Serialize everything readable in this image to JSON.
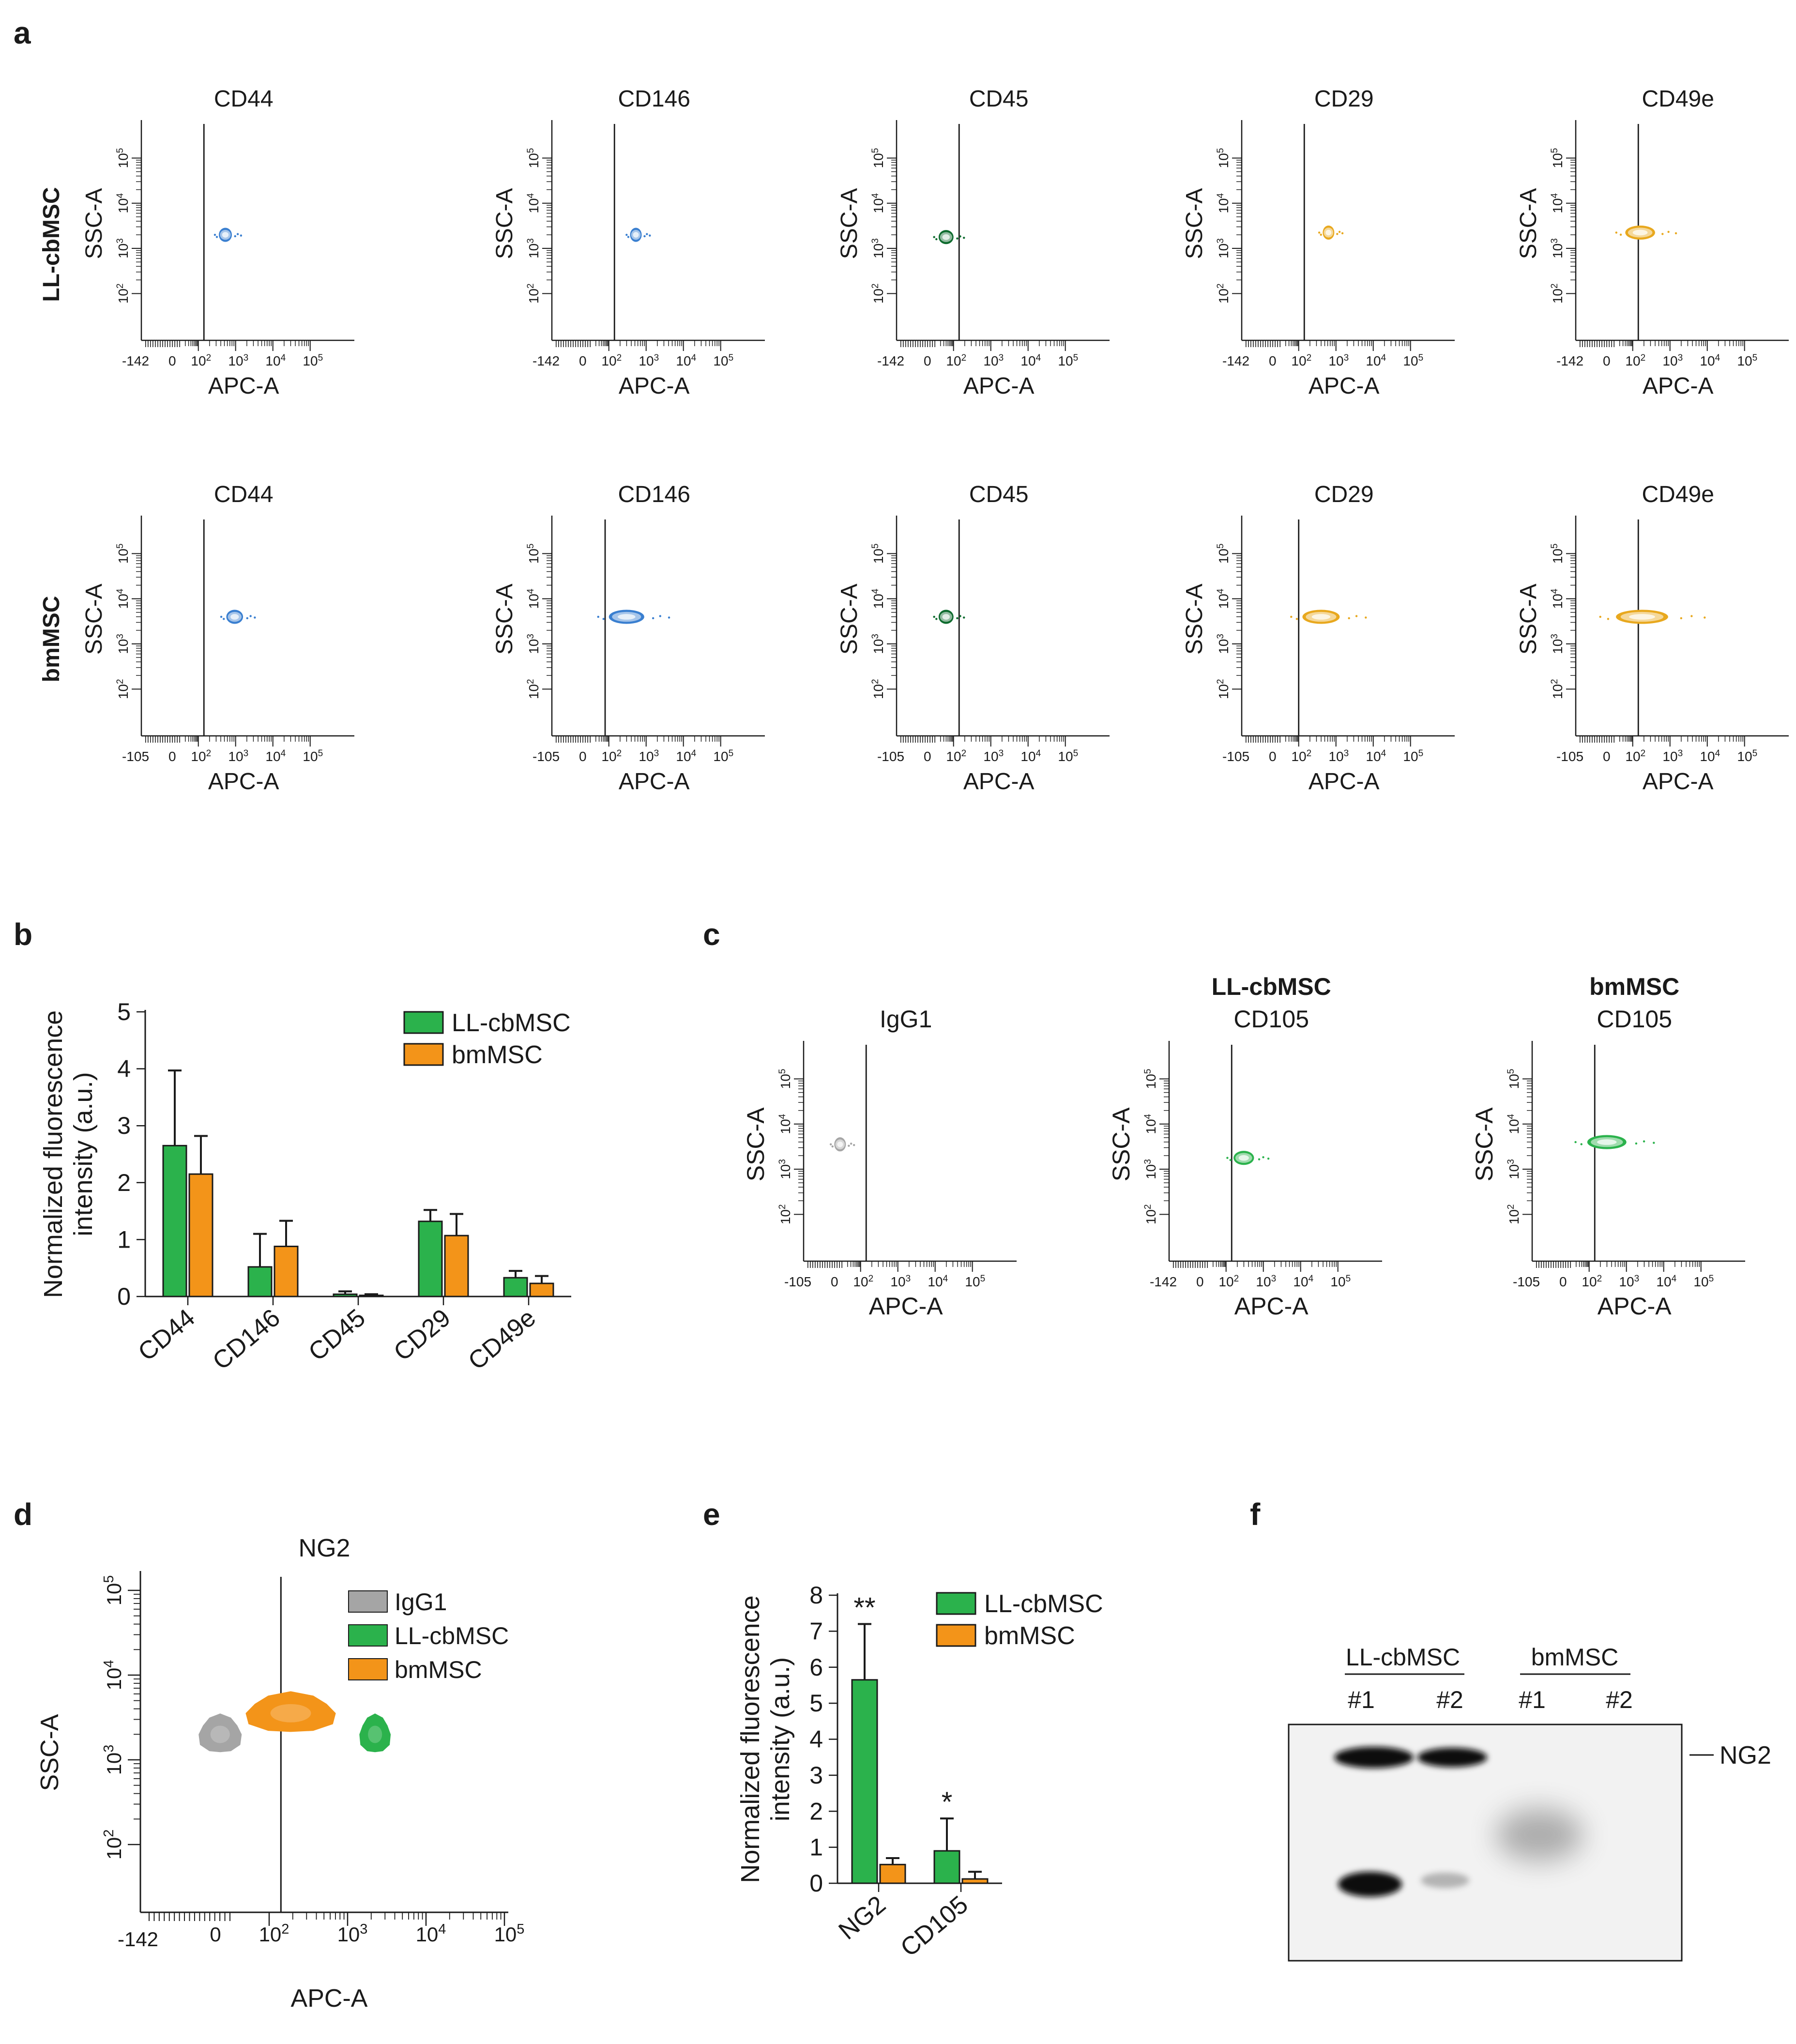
{
  "colors": {
    "blue": "#3a7fd0",
    "dark_green": "#0e6b2e",
    "gold": "#e8a81e",
    "green": "#2bb24c",
    "orange": "#f39419",
    "gray": "#a5a5a5",
    "black": "#1a1a1a"
  },
  "panel_labels": {
    "a": "a",
    "b": "b",
    "c": "c",
    "d": "d",
    "e": "e",
    "f": "f"
  },
  "flow_common": {
    "xlabel": "APC-A",
    "ylabel": "SSC-A",
    "x_tick_labels": [
      "0",
      "10^2",
      "10^3",
      "10^4",
      "10^5"
    ],
    "y_tick_labels": [
      "10^2",
      "10^3",
      "10^4",
      "10^5"
    ]
  },
  "panel_a": {
    "rows": [
      {
        "row_label": "LL-cbMSC",
        "neg_label": "-142",
        "plots": [
          {
            "marker": "CD44",
            "color_key": "blue",
            "gate_log": 2.15,
            "pop": {
              "x": [
                2.55,
                2.9
              ],
              "y": 3.3
            }
          },
          {
            "marker": "CD146",
            "color_key": "blue",
            "gate_log": 2.15,
            "pop": {
              "x": [
                2.6,
                2.85
              ],
              "y": 3.3
            }
          },
          {
            "marker": "CD45",
            "color_key": "dark_green",
            "gate_log": 2.15,
            "pop": {
              "x": [
                1.6,
                2.0
              ],
              "y": 3.25
            }
          },
          {
            "marker": "CD29",
            "color_key": "gold",
            "gate_log": 2.15,
            "pop": {
              "x": [
                2.65,
                2.95
              ],
              "y": 3.35
            }
          },
          {
            "marker": "CD49e",
            "color_key": "gold",
            "gate_log": 2.15,
            "pop": {
              "x": [
                1.8,
                2.6
              ],
              "y": 3.35
            }
          }
        ]
      },
      {
        "row_label": "bmMSC",
        "neg_label": "-105",
        "plots": [
          {
            "marker": "CD44",
            "color_key": "blue",
            "gate_log": 2.15,
            "pop": {
              "x": [
                2.75,
                3.2
              ],
              "y": 3.6
            }
          },
          {
            "marker": "CD146",
            "color_key": "blue",
            "gate_log": 1.9,
            "pop": {
              "x": [
                2.0,
                2.95
              ],
              "y": 3.6
            }
          },
          {
            "marker": "CD45",
            "color_key": "dark_green",
            "gate_log": 2.15,
            "pop": {
              "x": [
                1.6,
                2.0
              ],
              "y": 3.6
            }
          },
          {
            "marker": "CD29",
            "color_key": "gold",
            "gate_log": 2.0,
            "pop": {
              "x": [
                2.1,
                3.1
              ],
              "y": 3.6
            }
          },
          {
            "marker": "CD49e",
            "color_key": "gold",
            "gate_log": 2.15,
            "pop": {
              "x": [
                1.55,
                2.95
              ],
              "y": 3.6
            }
          }
        ]
      }
    ]
  },
  "panel_c": {
    "plots": [
      {
        "title_bold": "",
        "title": "IgG1",
        "neg_label": "-105",
        "color_key": "gray",
        "gate_log": 2.15,
        "pop": {
          "x": [
            1.3,
            1.6
          ],
          "y": 3.55
        }
      },
      {
        "title_bold": "LL-cbMSC",
        "title": "CD105",
        "neg_label": "-142",
        "color_key": "green",
        "gate_log": 2.15,
        "pop": {
          "x": [
            2.2,
            2.75
          ],
          "y": 3.25
        }
      },
      {
        "title_bold": "bmMSC",
        "title": "CD105",
        "neg_label": "-105",
        "color_key": "green",
        "gate_log": 2.15,
        "pop": {
          "x": [
            1.95,
            3.0
          ],
          "y": 3.6
        }
      }
    ]
  },
  "panel_d": {
    "title": "NG2",
    "neg_label": "-142",
    "xlabel": "APC-A",
    "ylabel": "SSC-A",
    "gate_log": 2.15,
    "legend": [
      {
        "label": "IgG1",
        "color_key": "gray"
      },
      {
        "label": "LL-cbMSC",
        "color_key": "green"
      },
      {
        "label": "bmMSC",
        "color_key": "orange"
      }
    ],
    "populations": [
      {
        "color_key": "gray",
        "x": [
          1.1,
          1.65
        ],
        "y": 3.3
      },
      {
        "color_key": "orange",
        "x": [
          1.7,
          2.85
        ],
        "y": 3.55
      },
      {
        "color_key": "green",
        "x": [
          3.15,
          3.55
        ],
        "y": 3.3
      }
    ]
  },
  "panel_f": {
    "groups": [
      {
        "label": "LL-cbMSC"
      },
      {
        "label": "bmMSC"
      }
    ],
    "lanes": [
      "#1",
      "#2",
      "#1",
      "#2"
    ],
    "band_label": "NG2"
  },
  "chart_data": [
    {
      "panel": "b",
      "type": "bar",
      "title": "",
      "xlabel": "",
      "ylabel": "Normalized fluorescence intensity (a.u.)",
      "ylim": [
        0,
        5
      ],
      "yticks": [
        0,
        1,
        2,
        3,
        4,
        5
      ],
      "categories": [
        "CD44",
        "CD146",
        "CD45",
        "CD29",
        "CD49e"
      ],
      "series": [
        {
          "name": "LL-cbMSC",
          "color_key": "green",
          "values": [
            2.65,
            0.52,
            0.04,
            1.32,
            0.33
          ],
          "errors": [
            1.32,
            0.58,
            0.05,
            0.2,
            0.12
          ]
        },
        {
          "name": "bmMSC",
          "color_key": "orange",
          "values": [
            2.15,
            0.88,
            0.02,
            1.07,
            0.23
          ],
          "errors": [
            0.67,
            0.45,
            0.02,
            0.38,
            0.13
          ]
        }
      ],
      "annotations": []
    },
    {
      "panel": "e",
      "type": "bar",
      "title": "",
      "xlabel": "",
      "ylabel": "Normalized fluorescence intensity (a.u.)",
      "ylim": [
        0,
        8
      ],
      "yticks": [
        0,
        1,
        2,
        3,
        4,
        5,
        6,
        7,
        8
      ],
      "categories": [
        "NG2",
        "CD105"
      ],
      "series": [
        {
          "name": "LL-cbMSC",
          "color_key": "green",
          "values": [
            5.65,
            0.9
          ],
          "errors": [
            1.55,
            0.9
          ]
        },
        {
          "name": "bmMSC",
          "color_key": "orange",
          "values": [
            0.52,
            0.12
          ],
          "errors": [
            0.18,
            0.2
          ]
        }
      ],
      "annotations": [
        "**",
        "*"
      ]
    }
  ]
}
